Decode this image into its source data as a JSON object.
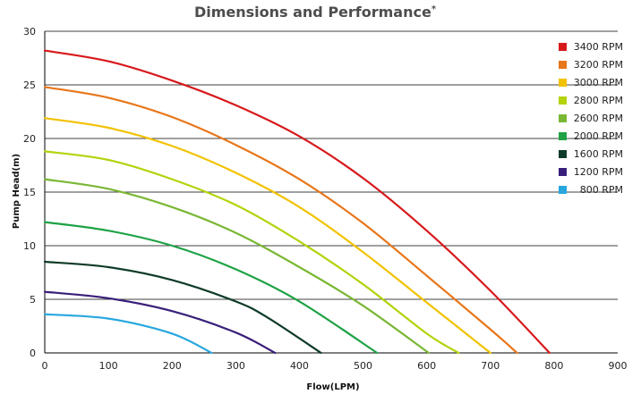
{
  "chart_data": {
    "type": "line",
    "title": "Dimensions and Performance",
    "title_mark": "*",
    "xlabel": "Flow(LPM)",
    "ylabel": "Pump Head(m)",
    "xlim": [
      0,
      900
    ],
    "ylim": [
      0,
      30
    ],
    "x_ticks": [
      0,
      100,
      200,
      300,
      400,
      500,
      600,
      700,
      800,
      900
    ],
    "y_ticks": [
      0,
      5,
      10,
      15,
      20,
      25,
      30
    ],
    "grid": "horizontal",
    "legend_position": "right",
    "series": [
      {
        "name": "3400 RPM",
        "color": "#d7191c",
        "x": [
          0,
          100,
          200,
          300,
          400,
          500,
          600,
          700,
          793
        ],
        "y": [
          28.2,
          27.2,
          25.4,
          23.1,
          20.2,
          16.3,
          11.4,
          5.8,
          0
        ]
      },
      {
        "name": "3200 RPM",
        "color": "#e8761a",
        "x": [
          0,
          100,
          200,
          300,
          400,
          500,
          600,
          700,
          742
        ],
        "y": [
          24.8,
          23.8,
          22.0,
          19.4,
          16.2,
          12.1,
          7.2,
          2.2,
          0
        ]
      },
      {
        "name": "3000 RPM",
        "color": "#f2c200",
        "x": [
          0,
          100,
          200,
          300,
          400,
          500,
          600,
          700
        ],
        "y": [
          21.9,
          21.0,
          19.3,
          16.8,
          13.6,
          9.4,
          4.7,
          0
        ]
      },
      {
        "name": "2800 RPM",
        "color": "#b5d20c",
        "x": [
          0,
          100,
          200,
          300,
          400,
          500,
          600,
          650
        ],
        "y": [
          18.8,
          18.0,
          16.2,
          13.8,
          10.4,
          6.4,
          1.8,
          0
        ]
      },
      {
        "name": "2600 RPM",
        "color": "#7ab734",
        "x": [
          0,
          100,
          200,
          300,
          400,
          500,
          603
        ],
        "y": [
          16.2,
          15.3,
          13.6,
          11.2,
          8.0,
          4.4,
          0
        ]
      },
      {
        "name": "2000 RPM",
        "color": "#1ea245",
        "x": [
          0,
          100,
          200,
          300,
          400,
          522
        ],
        "y": [
          12.2,
          11.4,
          10.0,
          7.8,
          4.8,
          0
        ]
      },
      {
        "name": "1600 RPM",
        "color": "#0e3b27",
        "x": [
          0,
          100,
          200,
          300,
          350,
          434
        ],
        "y": [
          8.5,
          8.0,
          6.8,
          4.8,
          3.3,
          0
        ]
      },
      {
        "name": "1200 RPM",
        "color": "#3a1f7a",
        "x": [
          0,
          100,
          200,
          300,
          362
        ],
        "y": [
          5.7,
          5.1,
          3.9,
          1.9,
          0
        ]
      },
      {
        "name": "800 RPM",
        "color": "#27a7de",
        "x": [
          0,
          100,
          200,
          262
        ],
        "y": [
          3.6,
          3.2,
          1.8,
          0
        ]
      }
    ]
  }
}
